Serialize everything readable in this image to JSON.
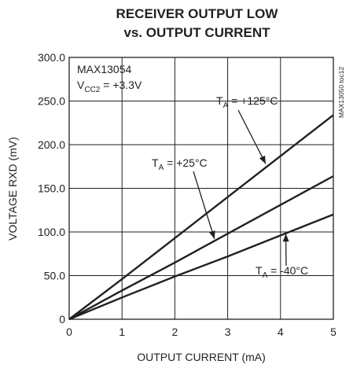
{
  "chart_data": {
    "type": "line",
    "title": [
      "RECEIVER OUTPUT LOW",
      "vs. OUTPUT CURRENT"
    ],
    "xlabel": "OUTPUT CURRENT (mA)",
    "ylabel": "VOLTAGE RXD (mV)",
    "xlim": [
      0,
      5
    ],
    "ylim": [
      0,
      300
    ],
    "x_ticks": [
      "0",
      "1",
      "2",
      "3",
      "4",
      "5"
    ],
    "y_ticks": [
      "0",
      "50.0",
      "100.0",
      "150.0",
      "200.0",
      "250.0",
      "300.0"
    ],
    "grid": true,
    "part_label": "MAX13054",
    "vcc_label": {
      "base": "V",
      "sub": "CC2",
      "rest": " = +3.3V"
    },
    "figure_id": "MAX13050 toc12",
    "series": [
      {
        "name": "T_A = +125°C",
        "label_base": "T",
        "label_sub": "A",
        "label_rest": " = +125°C",
        "x": [
          0,
          1,
          2,
          3,
          4,
          5
        ],
        "y": [
          0,
          46,
          93,
          140,
          187,
          234
        ]
      },
      {
        "name": "T_A = +25°C",
        "label_base": "T",
        "label_sub": "A",
        "label_rest": " = +25°C",
        "x": [
          0,
          1,
          2,
          3,
          4,
          5
        ],
        "y": [
          0,
          33,
          65,
          98,
          131,
          164
        ]
      },
      {
        "name": "T_A = -40°C",
        "label_base": "T",
        "label_sub": "A",
        "label_rest": " = -40°C",
        "x": [
          0,
          1,
          2,
          3,
          4,
          5
        ],
        "y": [
          0,
          25,
          49,
          72,
          96,
          120
        ]
      }
    ]
  }
}
